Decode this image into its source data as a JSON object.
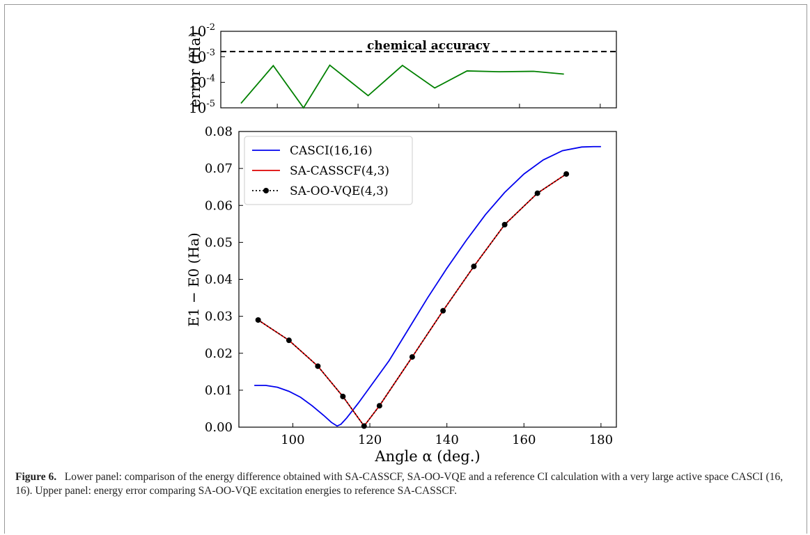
{
  "caption": {
    "label": "Figure 6.",
    "text": "Lower panel: comparison of the energy difference obtained with SA-CASSCF, SA-OO-VQE and a reference CI calculation with a very large active space CASCI (16, 16). Upper panel: energy error comparing SA-OO-VQE excitation energies to reference SA-CASSCF."
  },
  "colors": {
    "casci": "#0000ee",
    "sacasscf": "#dd0000",
    "saoovqe": "#000000",
    "error": "#008000",
    "threshold": "#000000"
  },
  "chart_data": [
    {
      "type": "line",
      "panel": "upper",
      "ylabel": "error (Ha)",
      "yscale": "log",
      "ylim": [
        1e-05,
        0.01
      ],
      "xlim": [
        86,
        184
      ],
      "yticks": [
        {
          "base": "10",
          "exp": "-2"
        },
        {
          "base": "10",
          "exp": "-3"
        },
        {
          "base": "10",
          "exp": "-4"
        },
        {
          "base": "10",
          "exp": "-5"
        }
      ],
      "threshold": {
        "label": "chemical accuracy",
        "value": 0.0016
      },
      "series": [
        {
          "x": [
            91,
            99,
            106.5,
            113,
            122.5,
            131,
            139,
            147,
            155,
            163.5,
            171
          ],
          "y": [
            1.5e-05,
            0.00045,
            1e-05,
            0.00047,
            3e-05,
            0.00046,
            6e-05,
            0.00028,
            0.00026,
            0.00027,
            0.00021
          ]
        }
      ]
    },
    {
      "type": "line",
      "panel": "lower",
      "xlabel": "Angle α (deg.)",
      "ylabel": "E1 − E0 (Ha)",
      "xlim": [
        86,
        184
      ],
      "ylim": [
        0.0,
        0.08
      ],
      "xticks": [
        "100",
        "120",
        "140",
        "160",
        "180"
      ],
      "yticks": [
        "0.00",
        "0.01",
        "0.02",
        "0.03",
        "0.04",
        "0.05",
        "0.06",
        "0.07",
        "0.08"
      ],
      "legend": "upper-left",
      "series": [
        {
          "name": "CASCI(16,16)",
          "style": "solid",
          "x": [
            90,
            93,
            96,
            99,
            102,
            105,
            108,
            110,
            111.5,
            112.5,
            114,
            117,
            120,
            125,
            130,
            135,
            140,
            145,
            150,
            155,
            160,
            165,
            170,
            175,
            178,
            180
          ],
          "y": [
            0.0113,
            0.0113,
            0.0108,
            0.0097,
            0.0081,
            0.0058,
            0.0032,
            0.0013,
            0.0003,
            0.0008,
            0.0025,
            0.0065,
            0.0108,
            0.018,
            0.0265,
            0.035,
            0.043,
            0.0505,
            0.0575,
            0.0635,
            0.0685,
            0.0723,
            0.0748,
            0.0758,
            0.0759,
            0.0759
          ]
        },
        {
          "name": "SA-CASSCF(4,3)",
          "style": "solid",
          "x": [
            91,
            99,
            106.5,
            113,
            118.5,
            122.5,
            131,
            139,
            147,
            155,
            163.5,
            171
          ],
          "y": [
            0.029,
            0.0235,
            0.0165,
            0.0083,
            0.0003,
            0.0058,
            0.019,
            0.0315,
            0.0435,
            0.0548,
            0.0633,
            0.0685
          ]
        },
        {
          "name": "SA-OO-VQE(4,3)",
          "style": "dotted-markers",
          "x": [
            91,
            99,
            106.5,
            113,
            118.5,
            122.5,
            131,
            139,
            147,
            155,
            163.5,
            171
          ],
          "y": [
            0.029,
            0.0235,
            0.0165,
            0.0083,
            0.0003,
            0.0058,
            0.019,
            0.0315,
            0.0435,
            0.0548,
            0.0633,
            0.0685
          ]
        }
      ]
    }
  ]
}
